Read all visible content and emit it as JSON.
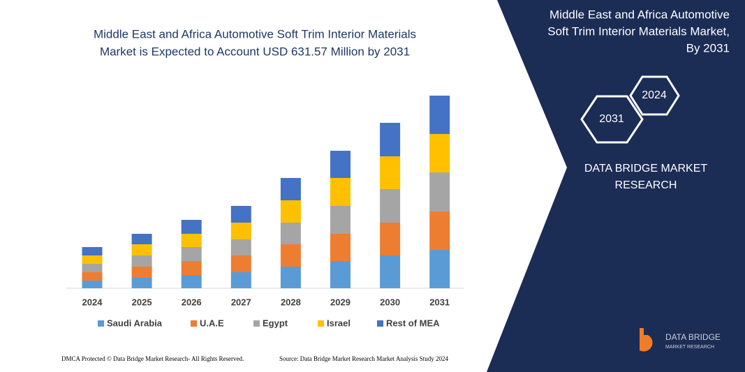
{
  "chart_data": {
    "type": "stacked-bar",
    "title": [
      "Middle East and Africa Automotive Soft Trim Interior Materials",
      "Market is Expected to Account USD 631.57 Million by 2031"
    ],
    "categories": [
      "2024",
      "2025",
      "2026",
      "2027",
      "2028",
      "2029",
      "2030",
      "2031"
    ],
    "series": [
      {
        "name": "Saudi Arabia",
        "color": "#5b9bd5",
        "values": [
          11,
          15,
          19,
          23,
          31,
          39,
          47,
          55
        ]
      },
      {
        "name": "U.A.E",
        "color": "#ed7d31",
        "values": [
          12,
          16,
          20,
          24,
          32,
          39,
          47,
          55
        ]
      },
      {
        "name": "Egypt",
        "color": "#a5a5a5",
        "values": [
          12,
          16,
          20,
          23,
          31,
          40,
          48,
          56
        ]
      },
      {
        "name": "Israel",
        "color": "#ffc000",
        "values": [
          12,
          16,
          19,
          24,
          32,
          40,
          47,
          55
        ]
      },
      {
        "name": "Rest of MEA",
        "color": "#4472c4",
        "values": [
          12,
          15,
          20,
          24,
          32,
          39,
          48,
          55
        ]
      }
    ]
  },
  "panel": {
    "title": [
      "Middle East and Africa Automotive",
      "Soft Trim Interior Materials Market,",
      "By 2031"
    ],
    "hexagons": [
      "2031",
      "2024"
    ],
    "brand": [
      "DATA BRIDGE MARKET",
      "RESEARCH"
    ],
    "logo": [
      "DATA BRIDGE",
      "MARKET RESEARCH"
    ]
  },
  "footer": {
    "dmca": "DMCA Protected © Data Bridge Market Research- All Rights Reserved.",
    "source": "Source: Data Bridge Market Research Market Analysis Study 2024"
  }
}
